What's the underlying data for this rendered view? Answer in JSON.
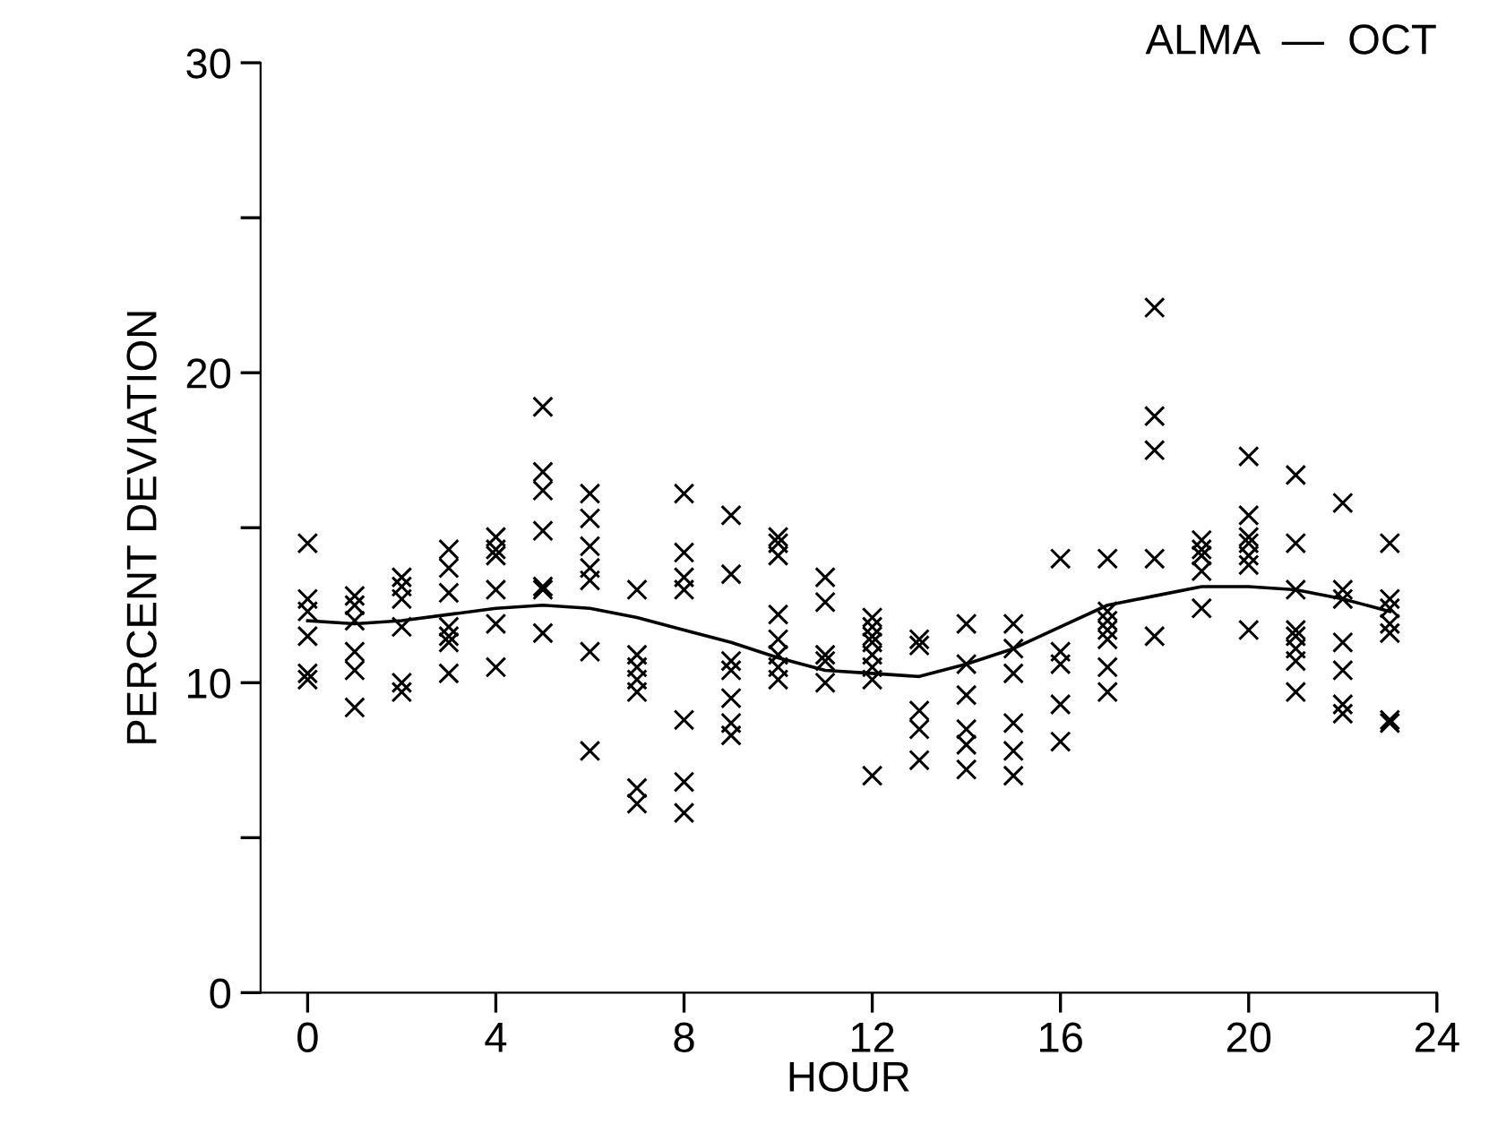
{
  "chart_data": {
    "type": "scatter",
    "title": "ALMA  —  OCT",
    "xlabel": "HOUR",
    "ylabel": "PERCENT DEVIATION",
    "xlim": [
      -1,
      24
    ],
    "xticks": [
      0,
      4,
      8,
      12,
      16,
      20,
      24
    ],
    "ylim": [
      0,
      30
    ],
    "yticks": [
      0,
      {
        "value": 5,
        "label": null
      },
      10,
      {
        "value": 15,
        "label": null
      },
      20,
      {
        "value": 25,
        "label": null
      },
      30
    ],
    "grid": false,
    "legend": false,
    "marker": "cross",
    "series": [
      {
        "color": "#000000",
        "x": [
          0,
          0,
          0,
          0,
          0,
          0,
          1,
          1,
          1,
          1,
          1,
          1,
          2,
          2,
          2,
          2,
          2,
          2,
          3,
          3,
          3,
          3,
          3,
          3,
          3,
          4,
          4,
          4,
          4,
          4,
          4,
          5,
          5,
          5,
          5,
          5,
          5,
          5,
          6,
          6,
          6,
          6,
          6,
          6,
          6,
          7,
          7,
          7,
          7,
          7,
          7,
          7,
          8,
          8,
          8,
          8,
          8,
          8,
          8,
          9,
          9,
          9,
          9,
          9,
          9,
          9,
          10,
          10,
          10,
          10,
          10,
          10,
          10,
          10,
          11,
          11,
          11,
          11,
          11,
          12,
          12,
          12,
          12,
          12,
          12,
          12,
          12,
          13,
          13,
          13,
          13,
          13,
          14,
          14,
          14,
          14,
          14,
          14,
          15,
          15,
          15,
          15,
          15,
          15,
          16,
          16,
          16,
          16,
          16,
          17,
          17,
          17,
          17,
          17,
          17,
          17,
          18,
          18,
          18,
          18,
          18,
          19,
          19,
          19,
          19,
          19,
          20,
          20,
          20,
          20,
          20,
          20,
          20,
          21,
          21,
          21,
          21,
          21,
          21,
          21,
          21,
          22,
          22,
          22,
          22,
          22,
          22,
          22,
          23,
          23,
          23,
          23,
          23,
          23,
          23
        ],
        "values": [
          14.5,
          12.7,
          12.3,
          11.5,
          10.3,
          10.1,
          12.8,
          12.5,
          12.0,
          11.0,
          10.4,
          9.2,
          13.4,
          13.1,
          12.7,
          11.8,
          10.0,
          9.7,
          14.3,
          13.7,
          12.9,
          11.8,
          11.5,
          11.3,
          10.3,
          14.7,
          14.3,
          14.1,
          13.0,
          11.9,
          10.5,
          18.9,
          16.8,
          16.2,
          14.9,
          13.1,
          13.0,
          11.6,
          16.1,
          15.3,
          14.4,
          13.7,
          13.3,
          11.0,
          7.8,
          13.0,
          10.9,
          10.5,
          10.1,
          9.7,
          6.6,
          6.1,
          16.1,
          14.2,
          13.4,
          13.0,
          8.8,
          6.8,
          5.8,
          15.4,
          13.5,
          10.7,
          10.4,
          9.5,
          8.7,
          8.3,
          14.7,
          14.5,
          14.1,
          12.2,
          11.4,
          10.9,
          10.5,
          10.1,
          13.4,
          12.6,
          10.9,
          10.7,
          10.0,
          12.1,
          11.8,
          11.5,
          11.3,
          10.9,
          10.5,
          10.1,
          7.0,
          11.4,
          11.2,
          9.1,
          8.5,
          7.5,
          11.9,
          10.6,
          9.6,
          8.5,
          8.0,
          7.2,
          11.9,
          11.1,
          10.3,
          8.7,
          7.8,
          7.0,
          14.0,
          11.0,
          10.6,
          9.3,
          8.1,
          14.0,
          12.3,
          12.0,
          11.7,
          11.4,
          10.5,
          9.7,
          22.1,
          18.6,
          17.5,
          14.0,
          11.5,
          14.6,
          14.3,
          14.1,
          13.6,
          12.4,
          17.3,
          15.4,
          14.7,
          14.5,
          14.1,
          13.8,
          11.7,
          16.7,
          14.5,
          13.0,
          11.7,
          11.5,
          11.1,
          10.7,
          9.7,
          15.8,
          13.0,
          12.7,
          11.3,
          10.4,
          9.3,
          9.0,
          14.5,
          12.7,
          12.4,
          11.9,
          11.6,
          8.8,
          8.7
        ]
      },
      {
        "type": "line",
        "color": "#000000",
        "line_style": "solid",
        "marker": "none",
        "x": [
          0,
          1,
          2,
          3,
          4,
          5,
          6,
          7,
          8,
          9,
          10,
          11,
          12,
          13,
          14,
          15,
          16,
          17,
          18,
          19,
          20,
          21,
          22,
          23
        ],
        "values": [
          12.0,
          11.9,
          12.0,
          12.2,
          12.4,
          12.5,
          12.4,
          12.1,
          11.7,
          11.3,
          10.8,
          10.4,
          10.3,
          10.2,
          10.6,
          11.1,
          11.8,
          12.5,
          12.8,
          13.1,
          13.1,
          13.0,
          12.7,
          12.3
        ]
      }
    ]
  }
}
